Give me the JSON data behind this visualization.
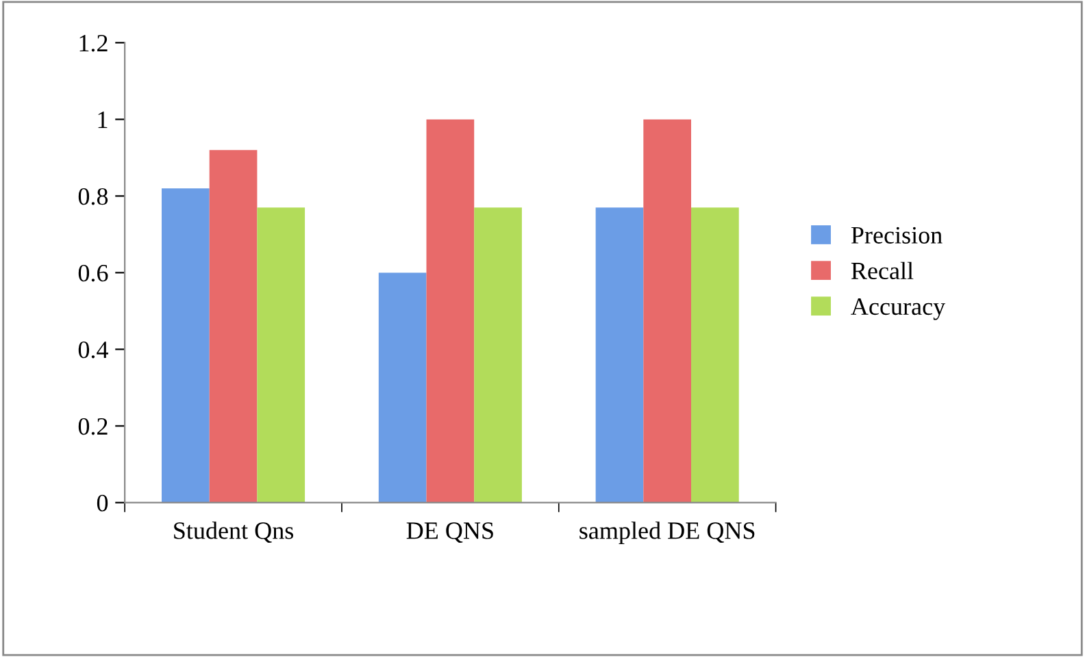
{
  "chart_data": {
    "type": "bar",
    "categories": [
      "Student Qns",
      "DE QNS",
      "sampled DE QNS"
    ],
    "series": [
      {
        "name": "Precision",
        "color": "#6b9de6",
        "values": [
          0.82,
          0.6,
          0.77
        ]
      },
      {
        "name": "Recall",
        "color": "#e86a6a",
        "values": [
          0.92,
          1.0,
          1.0
        ]
      },
      {
        "name": "Accuracy",
        "color": "#b2dc5a",
        "values": [
          0.77,
          0.77,
          0.77
        ]
      }
    ],
    "ylim": [
      0,
      1.2
    ],
    "yticks": [
      0,
      {
        "value": 0.2,
        "label": "0.2"
      },
      {
        "value": 0.4,
        "label": "0.4"
      },
      {
        "value": 0.6,
        "label": "0.6"
      },
      {
        "value": 0.8,
        "label": "0.8"
      },
      1,
      {
        "value": 1.2,
        "label": "1.2"
      }
    ],
    "grid": false,
    "legend": "right"
  }
}
